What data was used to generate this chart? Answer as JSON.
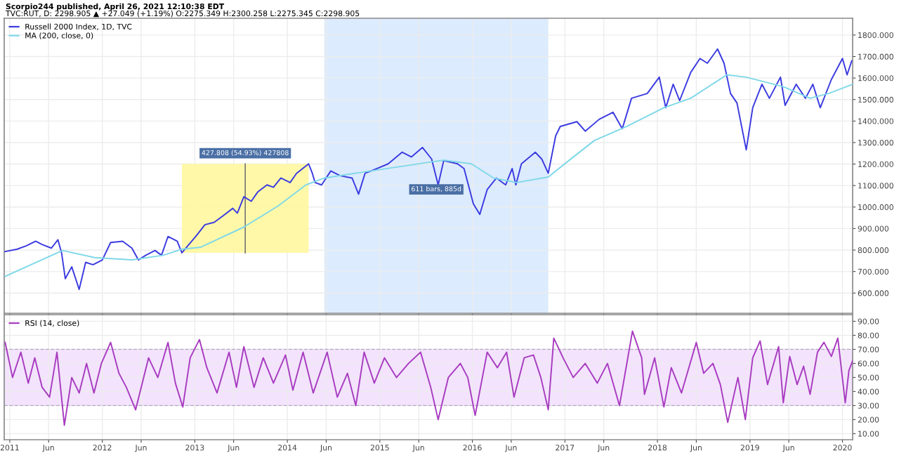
{
  "chart_data": [
    {
      "type": "line",
      "title": "Scorpio244 published, April 26, 2021 12:10:38 EDT",
      "subtitle": "TVC:RUT, D: 2298.905 ▲ +27.049 (+1.19%) O:2275.349 H:2300.258 L:2275.345 C:2298.905",
      "series": [
        {
          "name": "Russell 2000 Index, 1D, TVC",
          "color": "#3b3be0",
          "x": [
            2010.95,
            2011.08,
            2011.18,
            2011.28,
            2011.35,
            2011.45,
            2011.52,
            2011.56,
            2011.6,
            2011.67,
            2011.75,
            2011.82,
            2011.9,
            2012.0,
            2012.09,
            2012.22,
            2012.32,
            2012.39,
            2012.47,
            2012.57,
            2012.64,
            2012.71,
            2012.81,
            2012.86,
            2013.01,
            2013.11,
            2013.21,
            2013.31,
            2013.41,
            2013.46,
            2013.53,
            2013.61,
            2013.68,
            2013.78,
            2013.85,
            2013.93,
            2014.03,
            2014.1,
            2014.23,
            2014.27,
            2014.3,
            2014.37,
            2014.47,
            2014.57,
            2014.7,
            2014.77,
            2014.84,
            2014.97,
            2015.09,
            2015.24,
            2015.34,
            2015.46,
            2015.56,
            2015.63,
            2015.69,
            2015.84,
            2015.91,
            2016.01,
            2016.08,
            2016.16,
            2016.26,
            2016.36,
            2016.43,
            2016.47,
            2016.53,
            2016.68,
            2016.75,
            2016.82,
            2016.9,
            2016.95,
            2017.13,
            2017.22,
            2017.37,
            2017.52,
            2017.62,
            2017.72,
            2017.89,
            2018.02,
            2018.09,
            2018.17,
            2018.24,
            2018.36,
            2018.46,
            2018.54,
            2018.65,
            2018.72,
            2018.79,
            2018.86,
            2018.96,
            2019.03,
            2019.13,
            2019.21,
            2019.33,
            2019.38,
            2019.5,
            2019.6,
            2019.68,
            2019.76,
            2019.88,
            2020.0,
            2020.05,
            2020.1
          ],
          "values": [
            793,
            804,
            820,
            841,
            826,
            809,
            848,
            787,
            667,
            722,
            617,
            743,
            732,
            754,
            835,
            841,
            809,
            754,
            776,
            798,
            776,
            863,
            841,
            787,
            863,
            918,
            929,
            961,
            994,
            972,
            1048,
            1027,
            1070,
            1103,
            1092,
            1135,
            1114,
            1157,
            1201,
            1157,
            1114,
            1103,
            1168,
            1146,
            1135,
            1060,
            1157,
            1179,
            1201,
            1255,
            1233,
            1277,
            1223,
            1103,
            1216,
            1201,
            1179,
            1016,
            966,
            1081,
            1135,
            1103,
            1179,
            1103,
            1201,
            1255,
            1223,
            1157,
            1331,
            1375,
            1397,
            1353,
            1408,
            1441,
            1364,
            1506,
            1528,
            1604,
            1462,
            1571,
            1495,
            1626,
            1691,
            1669,
            1735,
            1669,
            1528,
            1484,
            1266,
            1462,
            1571,
            1506,
            1604,
            1473,
            1571,
            1506,
            1571,
            1462,
            1593,
            1691,
            1615,
            1680
          ]
        },
        {
          "name": "MA (200, close, 0)",
          "color": "#7fd8e8",
          "x": [
            2010.95,
            2011.57,
            2011.92,
            2012.32,
            2012.66,
            2012.86,
            2013.06,
            2013.53,
            2013.9,
            2014.2,
            2014.4,
            2014.9,
            2015.59,
            2015.69,
            2015.99,
            2016.23,
            2016.48,
            2016.82,
            2017.03,
            2017.32,
            2017.67,
            2018.07,
            2018.36,
            2018.75,
            2018.96,
            2019.36,
            2019.65,
            2019.85,
            2020.11
          ],
          "values": [
            678,
            798,
            765,
            754,
            776,
            804,
            813,
            907,
            1005,
            1103,
            1135,
            1168,
            1212,
            1218,
            1201,
            1135,
            1114,
            1140,
            1212,
            1310,
            1375,
            1462,
            1506,
            1615,
            1604,
            1560,
            1506,
            1528,
            1571
          ]
        }
      ],
      "xlim": [
        2010.94,
        2020.11
      ],
      "xticks": [
        {
          "value": 2011,
          "label": null
        },
        {
          "value": 2011.42,
          "label": null
        },
        {
          "value": 2012,
          "label": null
        },
        {
          "value": 2012.42,
          "label": null
        },
        {
          "value": 2013,
          "label": null
        },
        {
          "value": 2013.42,
          "label": null
        },
        {
          "value": 2014,
          "label": null
        },
        {
          "value": 2014.42,
          "label": null
        },
        {
          "value": 2015,
          "label": null
        },
        {
          "value": 2015.42,
          "label": null
        },
        {
          "value": 2016,
          "label": null
        },
        {
          "value": 2016.42,
          "label": null
        },
        {
          "value": 2017,
          "label": null
        },
        {
          "value": 2017.42,
          "label": null
        },
        {
          "value": 2018,
          "label": null
        },
        {
          "value": 2018.42,
          "label": null
        },
        {
          "value": 2019,
          "label": null
        },
        {
          "value": 2019.42,
          "label": null
        },
        {
          "value": 2020,
          "label": null
        }
      ],
      "ylim": [
        506,
        1878
      ],
      "yticks": [
        {
          "value": 600,
          "label": "600.000"
        },
        {
          "value": 700,
          "label": "700.000"
        },
        {
          "value": 800,
          "label": "800.000"
        },
        {
          "value": 900,
          "label": "900.000"
        },
        {
          "value": 1000,
          "label": "1000.000"
        },
        {
          "value": 1100,
          "label": "1100.000"
        },
        {
          "value": 1200,
          "label": "1200.000"
        },
        {
          "value": 1300,
          "label": "1300.000"
        },
        {
          "value": 1400,
          "label": "1400.000"
        },
        {
          "value": 1500,
          "label": "1500.000"
        },
        {
          "value": 1600,
          "label": "1600.000"
        },
        {
          "value": 1700,
          "label": "1700.000"
        },
        {
          "value": 1800,
          "label": "1800.000"
        }
      ],
      "grid": true,
      "legend": "top left",
      "tick_labels": "y",
      "bands": [
        {
          "axis": "x",
          "from": 2012.86,
          "to": 2014.23,
          "label": "427.808 (54.93%) 427808",
          "color": "#fff7a0"
        },
        {
          "axis": "x",
          "from": 2014.4,
          "to": 2016.82,
          "label": "611 bars, 885d",
          "color": "#dcebfd"
        }
      ]
    },
    {
      "type": "line",
      "series": [
        {
          "name": "RSI (14, close)",
          "color": "#a83cc0",
          "x": [
            2010.95,
            2011.03,
            2011.12,
            2011.2,
            2011.27,
            2011.35,
            2011.43,
            2011.51,
            2011.59,
            2011.67,
            2011.75,
            2011.83,
            2011.91,
            2011.99,
            2012.09,
            2012.18,
            2012.26,
            2012.36,
            2012.5,
            2012.6,
            2012.71,
            2012.79,
            2012.87,
            2012.95,
            2013.05,
            2013.13,
            2013.24,
            2013.37,
            2013.45,
            2013.53,
            2013.64,
            2013.74,
            2013.85,
            2013.98,
            2014.06,
            2014.17,
            2014.28,
            2014.43,
            2014.54,
            2014.65,
            2014.74,
            2014.83,
            2014.94,
            2015.05,
            2015.18,
            2015.31,
            2015.44,
            2015.55,
            2015.63,
            2015.74,
            2015.87,
            2015.95,
            2016.03,
            2016.16,
            2016.27,
            2016.37,
            2016.45,
            2016.56,
            2016.66,
            2016.74,
            2016.82,
            2016.88,
            2016.98,
            2017.09,
            2017.22,
            2017.35,
            2017.46,
            2017.59,
            2017.73,
            2017.83,
            2017.86,
            2017.97,
            2018.07,
            2018.15,
            2018.26,
            2018.42,
            2018.5,
            2018.6,
            2018.68,
            2018.76,
            2018.87,
            2018.95,
            2019.03,
            2019.11,
            2019.19,
            2019.31,
            2019.36,
            2019.43,
            2019.51,
            2019.58,
            2019.65,
            2019.73,
            2019.8,
            2019.88,
            2019.95,
            2020.03,
            2020.07,
            2020.11
          ],
          "values": [
            75,
            50,
            68,
            46,
            64,
            43,
            36,
            68,
            16,
            50,
            39,
            60,
            39,
            60,
            75,
            53,
            43,
            27,
            64,
            50,
            75,
            46,
            29,
            64,
            77,
            57,
            39,
            68,
            43,
            72,
            43,
            64,
            46,
            66,
            41,
            68,
            39,
            68,
            36,
            53,
            30,
            68,
            46,
            64,
            50,
            60,
            68,
            43,
            20,
            50,
            60,
            50,
            23,
            68,
            57,
            68,
            36,
            64,
            66,
            50,
            27,
            78,
            64,
            50,
            60,
            46,
            60,
            30,
            83,
            64,
            38,
            64,
            29,
            57,
            39,
            75,
            53,
            60,
            45,
            18,
            50,
            20,
            64,
            76,
            45,
            72,
            32,
            65,
            45,
            58,
            38,
            68,
            75,
            65,
            78,
            32,
            55,
            62
          ]
        }
      ],
      "xlim": [
        2010.94,
        2020.11
      ],
      "xticks": [
        {
          "value": 2011,
          "label": "2011"
        },
        {
          "value": 2011.42,
          "label": "Jun"
        },
        {
          "value": 2012,
          "label": "2012"
        },
        {
          "value": 2012.42,
          "label": "Jun"
        },
        {
          "value": 2013,
          "label": "2013"
        },
        {
          "value": 2013.42,
          "label": "Jun"
        },
        {
          "value": 2014,
          "label": "2014"
        },
        {
          "value": 2014.42,
          "label": "Jun"
        },
        {
          "value": 2015,
          "label": "2015"
        },
        {
          "value": 2015.42,
          "label": "Jun"
        },
        {
          "value": 2016,
          "label": "2016"
        },
        {
          "value": 2016.42,
          "label": "Jun"
        },
        {
          "value": 2017,
          "label": "2017"
        },
        {
          "value": 2017.42,
          "label": "Jun"
        },
        {
          "value": 2018,
          "label": "2018"
        },
        {
          "value": 2018.42,
          "label": "Jun"
        },
        {
          "value": 2019,
          "label": "2019"
        },
        {
          "value": 2019.42,
          "label": "Jun"
        },
        {
          "value": 2020,
          "label": "2020"
        }
      ],
      "ylim": [
        5.7,
        94.7
      ],
      "yticks": [
        {
          "value": 10,
          "label": "10.00"
        },
        {
          "value": 20,
          "label": "20.00"
        },
        {
          "value": 30,
          "label": "30.00"
        },
        {
          "value": 40,
          "label": "40.00"
        },
        {
          "value": 50,
          "label": "50.00"
        },
        {
          "value": 60,
          "label": "60.00"
        },
        {
          "value": 70,
          "label": "70.00"
        },
        {
          "value": 80,
          "label": "80.00"
        },
        {
          "value": 90,
          "label": "90.00"
        }
      ],
      "grid": true,
      "legend": "top left",
      "bands": [
        {
          "axis": "y",
          "from": 30,
          "to": 70,
          "color": "#f3e3fd"
        }
      ]
    }
  ]
}
